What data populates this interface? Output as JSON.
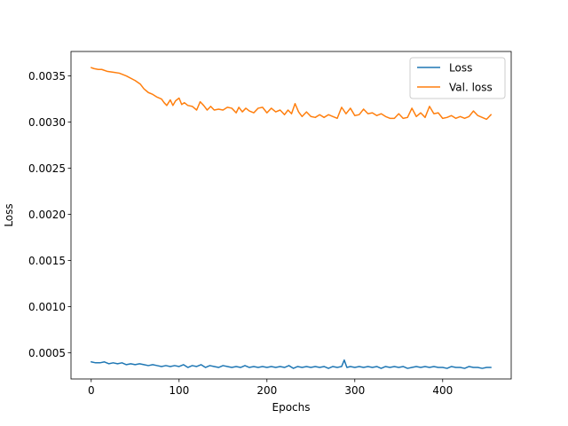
{
  "chart_data": {
    "type": "line",
    "xlabel": "Epochs",
    "ylabel": "Loss",
    "xlim": [
      -23,
      478
    ],
    "ylim": [
      0.000215,
      0.003765
    ],
    "xticks": [
      0,
      100,
      200,
      300,
      400
    ],
    "yticks": [
      0.0005,
      0.001,
      0.0015,
      0.002,
      0.0025,
      0.003,
      0.0035
    ],
    "ytick_labels": [
      "0.0005",
      "0.0010",
      "0.0015",
      "0.0020",
      "0.0025",
      "0.0030",
      "0.0035"
    ],
    "legend_position": "top-right",
    "grid": false,
    "series": [
      {
        "name": "Loss",
        "color": "#1f77b4",
        "x": [
          0,
          5,
          10,
          15,
          20,
          25,
          30,
          35,
          40,
          45,
          50,
          55,
          60,
          65,
          70,
          75,
          80,
          85,
          90,
          95,
          100,
          105,
          110,
          115,
          120,
          125,
          130,
          135,
          140,
          145,
          150,
          155,
          160,
          165,
          170,
          175,
          180,
          185,
          190,
          195,
          200,
          205,
          210,
          215,
          220,
          225,
          230,
          235,
          240,
          245,
          250,
          255,
          260,
          265,
          270,
          275,
          280,
          285,
          288,
          291,
          295,
          300,
          305,
          310,
          315,
          320,
          325,
          330,
          335,
          340,
          345,
          350,
          355,
          360,
          365,
          370,
          375,
          380,
          385,
          390,
          395,
          400,
          405,
          410,
          415,
          420,
          425,
          430,
          435,
          440,
          445,
          450,
          455
        ],
        "y": [
          0.0004,
          0.00039,
          0.00039,
          0.0004,
          0.00038,
          0.00039,
          0.00038,
          0.00039,
          0.00037,
          0.00038,
          0.00037,
          0.00038,
          0.00037,
          0.00036,
          0.00037,
          0.00036,
          0.00035,
          0.00036,
          0.00035,
          0.00036,
          0.00035,
          0.00037,
          0.00034,
          0.00036,
          0.00035,
          0.00037,
          0.00034,
          0.00036,
          0.00035,
          0.00034,
          0.00036,
          0.00035,
          0.00034,
          0.00035,
          0.00034,
          0.00036,
          0.00034,
          0.00035,
          0.00034,
          0.00035,
          0.00034,
          0.00035,
          0.00034,
          0.00035,
          0.00034,
          0.00036,
          0.00033,
          0.00035,
          0.00034,
          0.00035,
          0.00034,
          0.00035,
          0.00034,
          0.00035,
          0.00033,
          0.00035,
          0.00034,
          0.00035,
          0.00042,
          0.00034,
          0.00035,
          0.00034,
          0.00035,
          0.00034,
          0.00035,
          0.00034,
          0.00035,
          0.00033,
          0.00035,
          0.00034,
          0.00035,
          0.00034,
          0.00035,
          0.00033,
          0.00034,
          0.00035,
          0.00034,
          0.00035,
          0.00034,
          0.00035,
          0.00034,
          0.00034,
          0.00033,
          0.00035,
          0.00034,
          0.00034,
          0.00033,
          0.00035,
          0.00034,
          0.00034,
          0.00033,
          0.00034,
          0.00034
        ]
      },
      {
        "name": "Val. loss",
        "color": "#ff7f0e",
        "x": [
          0,
          3,
          8,
          12,
          18,
          25,
          32,
          40,
          50,
          56,
          60,
          65,
          70,
          75,
          80,
          83,
          86,
          90,
          93,
          96,
          100,
          103,
          106,
          110,
          115,
          120,
          124,
          128,
          132,
          136,
          140,
          145,
          150,
          155,
          160,
          165,
          168,
          172,
          176,
          180,
          185,
          190,
          195,
          200,
          205,
          210,
          215,
          220,
          224,
          228,
          232,
          236,
          240,
          245,
          250,
          255,
          260,
          265,
          270,
          275,
          280,
          285,
          290,
          295,
          300,
          305,
          310,
          315,
          320,
          325,
          330,
          335,
          340,
          345,
          350,
          355,
          360,
          365,
          370,
          375,
          380,
          385,
          390,
          395,
          400,
          405,
          410,
          415,
          420,
          425,
          430,
          435,
          440,
          445,
          450,
          455
        ],
        "y": [
          0.00359,
          0.00358,
          0.00357,
          0.00357,
          0.00355,
          0.00354,
          0.00353,
          0.0035,
          0.00345,
          0.00341,
          0.00336,
          0.00332,
          0.0033,
          0.00327,
          0.00325,
          0.00321,
          0.00318,
          0.00324,
          0.00318,
          0.00323,
          0.00326,
          0.00319,
          0.00321,
          0.00318,
          0.00317,
          0.00313,
          0.00322,
          0.00318,
          0.00313,
          0.00317,
          0.00313,
          0.00314,
          0.00313,
          0.00316,
          0.00315,
          0.0031,
          0.00316,
          0.00311,
          0.00315,
          0.00312,
          0.0031,
          0.00315,
          0.00316,
          0.0031,
          0.00315,
          0.00311,
          0.00313,
          0.00308,
          0.00313,
          0.00309,
          0.0032,
          0.00311,
          0.00306,
          0.00311,
          0.00306,
          0.00305,
          0.00308,
          0.00305,
          0.00308,
          0.00306,
          0.00304,
          0.00316,
          0.00309,
          0.00315,
          0.00307,
          0.00308,
          0.00314,
          0.00309,
          0.0031,
          0.00307,
          0.00309,
          0.00306,
          0.00304,
          0.00304,
          0.00309,
          0.00304,
          0.00305,
          0.00315,
          0.00306,
          0.0031,
          0.00305,
          0.00317,
          0.00309,
          0.0031,
          0.00304,
          0.00305,
          0.00307,
          0.00304,
          0.00306,
          0.00304,
          0.00306,
          0.00312,
          0.00307,
          0.00305,
          0.00303,
          0.00308
        ]
      }
    ]
  }
}
